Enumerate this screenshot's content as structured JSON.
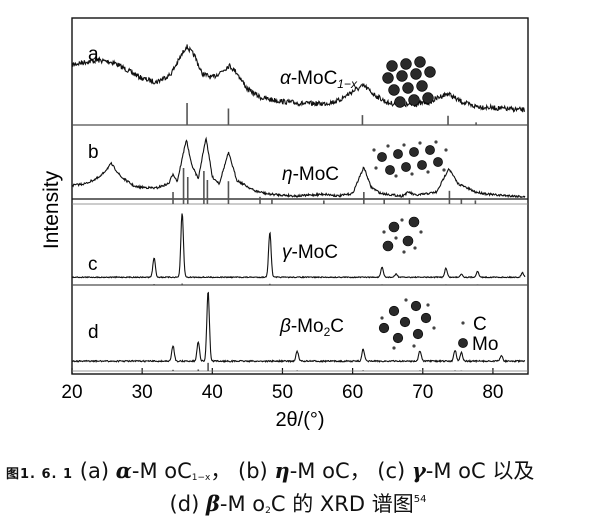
{
  "chart_data": {
    "type": "line",
    "xlabel": "2θ/(°)",
    "ylabel": "Intensity",
    "xlim": [
      20,
      85
    ],
    "x_ticks": [
      20,
      30,
      40,
      50,
      60,
      70,
      80
    ],
    "grid": false,
    "panels": [
      {
        "letter": "a",
        "phase": "α-MoC",
        "phase_sub": "1−x",
        "experimental_profile": [
          [
            20,
            0.74
          ],
          [
            22,
            0.78
          ],
          [
            24,
            0.8
          ],
          [
            26,
            0.77
          ],
          [
            28,
            0.66
          ],
          [
            30,
            0.55
          ],
          [
            32,
            0.5
          ],
          [
            34,
            0.6
          ],
          [
            35.5,
            0.85
          ],
          [
            36.3,
            1.0
          ],
          [
            37.5,
            0.86
          ],
          [
            38.5,
            0.62
          ],
          [
            40,
            0.56
          ],
          [
            41.5,
            0.66
          ],
          [
            42.4,
            0.73
          ],
          [
            43.5,
            0.63
          ],
          [
            45,
            0.4
          ],
          [
            47,
            0.28
          ],
          [
            50,
            0.23
          ],
          [
            53,
            0.2
          ],
          [
            56,
            0.2
          ],
          [
            58,
            0.24
          ],
          [
            60,
            0.37
          ],
          [
            61.6,
            0.45
          ],
          [
            63,
            0.33
          ],
          [
            65,
            0.21
          ],
          [
            68,
            0.18
          ],
          [
            71,
            0.22
          ],
          [
            72.5,
            0.3
          ],
          [
            73.6,
            0.34
          ],
          [
            75,
            0.25
          ],
          [
            77,
            0.17
          ],
          [
            80,
            0.14
          ],
          [
            84.5,
            0.11
          ]
        ],
        "reference_peaks": [
          [
            36.4,
            1.0
          ],
          [
            42.3,
            0.75
          ],
          [
            61.4,
            0.45
          ],
          [
            73.6,
            0.42
          ],
          [
            77.6,
            0.12
          ]
        ]
      },
      {
        "letter": "b",
        "phase": "η-MoC",
        "experimental_profile": [
          [
            20,
            0.22
          ],
          [
            22,
            0.25
          ],
          [
            24,
            0.35
          ],
          [
            25.6,
            0.55
          ],
          [
            27,
            0.35
          ],
          [
            29,
            0.2
          ],
          [
            32,
            0.18
          ],
          [
            33.8,
            0.25
          ],
          [
            34.4,
            0.4
          ],
          [
            35,
            0.28
          ],
          [
            36.3,
            0.92
          ],
          [
            37,
            0.55
          ],
          [
            38,
            0.32
          ],
          [
            39.1,
            0.95
          ],
          [
            40,
            0.35
          ],
          [
            41,
            0.25
          ],
          [
            42.3,
            0.72
          ],
          [
            43.5,
            0.3
          ],
          [
            46,
            0.14
          ],
          [
            48,
            0.09
          ],
          [
            52,
            0.06
          ],
          [
            56,
            0.09
          ],
          [
            58,
            0.06
          ],
          [
            60,
            0.1
          ],
          [
            61.6,
            0.5
          ],
          [
            62.6,
            0.2
          ],
          [
            64,
            0.1
          ],
          [
            67,
            0.06
          ],
          [
            68,
            0.12
          ],
          [
            69,
            0.07
          ],
          [
            72,
            0.12
          ],
          [
            73.7,
            0.48
          ],
          [
            75,
            0.25
          ],
          [
            77.5,
            0.12
          ],
          [
            80,
            0.08
          ],
          [
            84.5,
            0.05
          ]
        ],
        "reference_peaks": [
          [
            34.4,
            0.2
          ],
          [
            35.9,
            0.6
          ],
          [
            36.5,
            0.45
          ],
          [
            38.8,
            0.55
          ],
          [
            39.3,
            0.4
          ],
          [
            42.3,
            0.38
          ],
          [
            46.8,
            0.12
          ],
          [
            48.5,
            0.07
          ],
          [
            55.9,
            0.06
          ],
          [
            61.6,
            0.2
          ],
          [
            64.5,
            0.07
          ],
          [
            68.1,
            0.1
          ],
          [
            73.8,
            0.22
          ],
          [
            75.5,
            0.08
          ],
          [
            77.5,
            0.06
          ]
        ]
      },
      {
        "letter": "c",
        "phase": "γ-MoC",
        "experimental_profile": [
          [
            20,
            0.01
          ],
          [
            31.7,
            0.3
          ],
          [
            35.7,
            1.0
          ],
          [
            48.2,
            0.7
          ],
          [
            64.2,
            0.15
          ],
          [
            66.2,
            0.05
          ],
          [
            73.3,
            0.14
          ],
          [
            75.5,
            0.05
          ],
          [
            77.8,
            0.09
          ],
          [
            84.2,
            0.07
          ]
        ],
        "reference_peaks": [
          [
            31.7,
            0.08
          ],
          [
            35.7,
            0.12
          ],
          [
            48.2,
            0.1
          ],
          [
            64.2,
            0.05
          ],
          [
            73.3,
            0.05
          ],
          [
            77.8,
            0.05
          ]
        ]
      },
      {
        "letter": "d",
        "phase": "β-Mo",
        "phase_sub": "2",
        "phase_tail": "C",
        "experimental_profile": [
          [
            20,
            0.01
          ],
          [
            34.4,
            0.22
          ],
          [
            38.0,
            0.28
          ],
          [
            39.4,
            1.0
          ],
          [
            52.1,
            0.14
          ],
          [
            61.5,
            0.17
          ],
          [
            69.6,
            0.15
          ],
          [
            74.6,
            0.16
          ],
          [
            75.5,
            0.12
          ],
          [
            81.2,
            0.08
          ]
        ],
        "reference_peaks": [
          [
            34.4,
            0.1
          ],
          [
            38.0,
            0.13
          ],
          [
            39.4,
            0.68
          ],
          [
            52.1,
            0.05
          ],
          [
            61.5,
            0.06
          ],
          [
            69.6,
            0.05
          ],
          [
            74.6,
            0.05
          ],
          [
            75.5,
            0.04
          ]
        ]
      }
    ],
    "legend": [
      {
        "symbol": "small dot",
        "label": "C"
      },
      {
        "symbol": "large sphere",
        "label": "Mo"
      }
    ]
  },
  "caption": {
    "figure_number": "图1. 6. 1",
    "line1": [
      {
        "text": "(a) "
      },
      {
        "text": "α",
        "style": "bi"
      },
      {
        "text": "-M oC"
      },
      {
        "text": "1−x",
        "style": "sub"
      },
      {
        "text": "， (b) "
      },
      {
        "text": "η",
        "style": "bi"
      },
      {
        "text": "-M oC， (c) "
      },
      {
        "text": "γ",
        "style": "bi"
      },
      {
        "text": "-M oC 以及"
      }
    ],
    "line2": [
      {
        "text": "(d) "
      },
      {
        "text": "β",
        "style": "bi"
      },
      {
        "text": "-M o"
      },
      {
        "text": "2",
        "style": "sub"
      },
      {
        "text": "C 的 XRD 谱图"
      },
      {
        "text": "54",
        "style": "sup"
      }
    ]
  }
}
